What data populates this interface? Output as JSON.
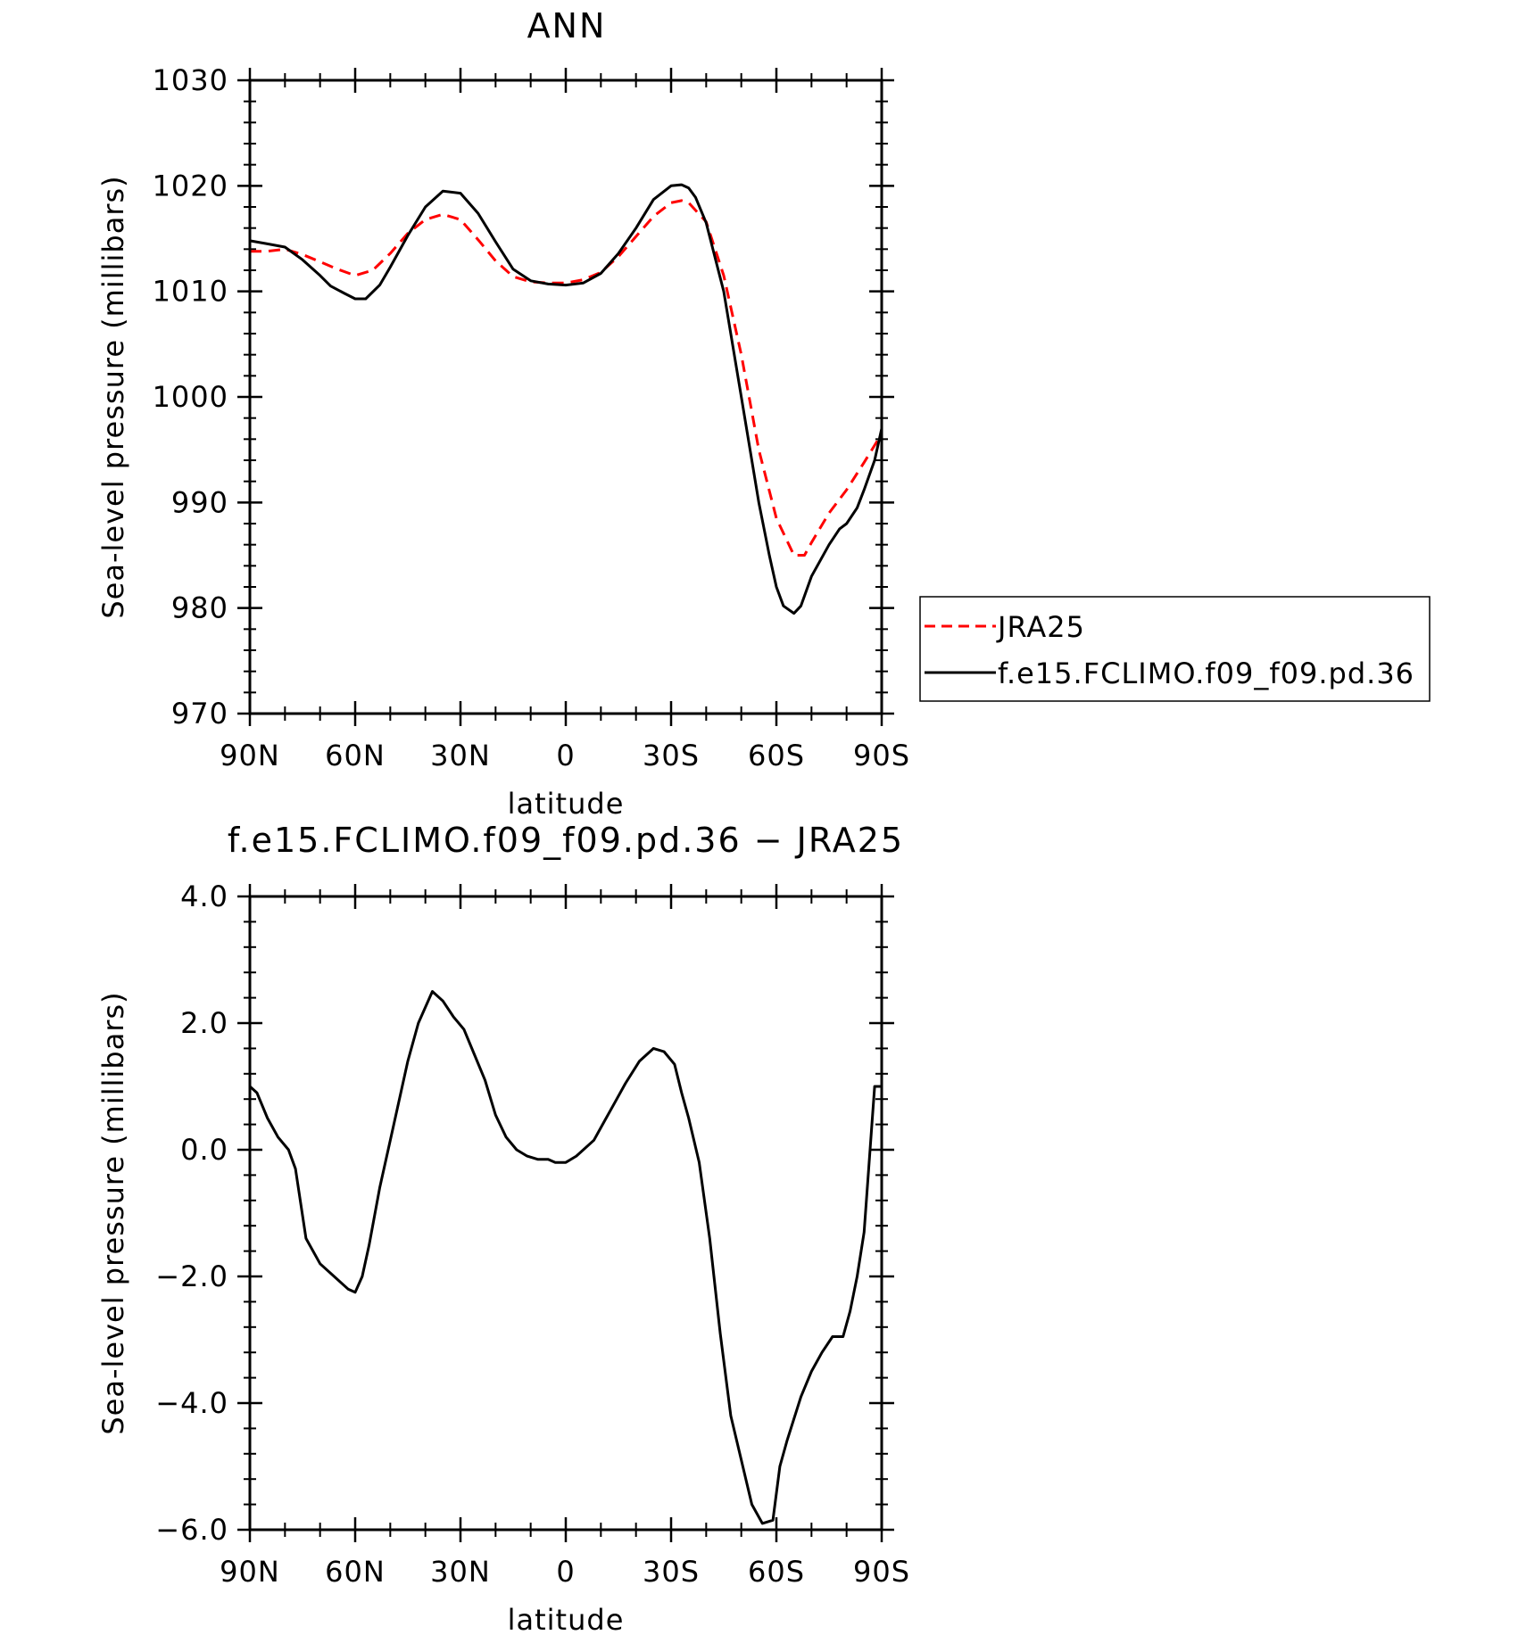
{
  "chart_data": [
    {
      "type": "line",
      "title": "ANN",
      "xlabel": "latitude",
      "ylabel": "Sea-level pressure (millibars)",
      "xlim": [
        90,
        -90
      ],
      "ylim": [
        970,
        1030
      ],
      "xtick_values": [
        90,
        60,
        30,
        0,
        -30,
        -60,
        -90
      ],
      "xtick_labels": [
        "90N",
        "60N",
        "30N",
        "0",
        "30S",
        "60S",
        "90S"
      ],
      "ytick_values": [
        970,
        980,
        990,
        1000,
        1010,
        1020,
        1030
      ],
      "ytick_labels": [
        "970",
        "980",
        "990",
        "1000",
        "1010",
        "1020",
        "1030"
      ],
      "grid": false,
      "legend_position": "right, outside plot",
      "series": [
        {
          "name": "JRA25",
          "color": "#ff0000",
          "style": "dashed",
          "x": [
            90,
            85,
            80,
            75,
            70,
            65,
            60,
            55,
            50,
            45,
            40,
            35,
            30,
            25,
            20,
            15,
            10,
            5,
            0,
            -5,
            -10,
            -15,
            -20,
            -25,
            -30,
            -33,
            -35,
            -40,
            -45,
            -50,
            -55,
            -60,
            -65,
            -68,
            -70,
            -75,
            -80,
            -85,
            -90
          ],
          "y": [
            1013.8,
            1013.8,
            1014.0,
            1013.5,
            1012.8,
            1012.1,
            1011.5,
            1012.0,
            1013.6,
            1015.5,
            1016.8,
            1017.3,
            1016.8,
            1014.9,
            1012.9,
            1011.4,
            1010.9,
            1010.8,
            1010.8,
            1011.1,
            1011.8,
            1013.3,
            1015.2,
            1017.1,
            1018.4,
            1018.6,
            1018.4,
            1016.6,
            1011.5,
            1004.0,
            995.0,
            988.5,
            985.0,
            985.0,
            986.2,
            989.0,
            991.2,
            993.8,
            996.5
          ]
        },
        {
          "name": "f.e15.FCLIMO.f09_f09.pd.36",
          "color": "#000000",
          "style": "solid",
          "x": [
            90,
            85,
            80,
            75,
            70,
            67,
            63,
            60,
            57,
            53,
            50,
            45,
            40,
            35,
            30,
            25,
            20,
            15,
            10,
            5,
            0,
            -5,
            -10,
            -15,
            -20,
            -25,
            -30,
            -33,
            -35,
            -37,
            -40,
            -45,
            -50,
            -55,
            -58,
            -60,
            -62,
            -65,
            -67,
            -70,
            -75,
            -78,
            -80,
            -83,
            -85,
            -88,
            -90
          ],
          "y": [
            1014.8,
            1014.5,
            1014.2,
            1013.0,
            1011.5,
            1010.5,
            1009.8,
            1009.3,
            1009.3,
            1010.6,
            1012.3,
            1015.3,
            1018.0,
            1019.5,
            1019.3,
            1017.4,
            1014.7,
            1012.1,
            1011.0,
            1010.7,
            1010.6,
            1010.8,
            1011.7,
            1013.6,
            1016.0,
            1018.7,
            1020.0,
            1020.1,
            1019.8,
            1018.9,
            1016.5,
            1010.0,
            1000.0,
            990.0,
            985.0,
            982.0,
            980.2,
            979.5,
            980.2,
            983.0,
            986.0,
            987.5,
            988.0,
            989.5,
            991.2,
            994.0,
            997.0
          ]
        }
      ]
    },
    {
      "type": "line",
      "title": "f.e15.FCLIMO.f09_f09.pd.36 − JRA25",
      "xlabel": "latitude",
      "ylabel": "Sea-level pressure (millibars)",
      "xlim": [
        90,
        -90
      ],
      "ylim": [
        -6.0,
        4.0
      ],
      "xtick_values": [
        90,
        60,
        30,
        0,
        -30,
        -60,
        -90
      ],
      "xtick_labels": [
        "90N",
        "60N",
        "30N",
        "0",
        "30S",
        "60S",
        "90S"
      ],
      "ytick_values": [
        -6,
        -4,
        -2,
        0,
        2,
        4
      ],
      "ytick_labels": [
        "−6.0",
        "−4.0",
        "−2.0",
        "0.0",
        "2.0",
        "4.0"
      ],
      "grid": false,
      "series": [
        {
          "color": "#000000",
          "style": "solid",
          "x": [
            90,
            88,
            85,
            82,
            79,
            77,
            74,
            70,
            66,
            62,
            60,
            58,
            56,
            53,
            49,
            45,
            42,
            38,
            35,
            32,
            29,
            26,
            23,
            20,
            17,
            14,
            11,
            8,
            5,
            3,
            0,
            -3,
            -5,
            -8,
            -11,
            -14,
            -17,
            -21,
            -25,
            -28,
            -31,
            -33,
            -35,
            -38,
            -41,
            -44,
            -47,
            -50,
            -53,
            -56,
            -59,
            -61,
            -63,
            -67,
            -70,
            -73,
            -76,
            -79,
            -81,
            -83,
            -85,
            -88,
            -90
          ],
          "y": [
            1.0,
            0.9,
            0.5,
            0.2,
            0.0,
            -0.3,
            -1.4,
            -1.8,
            -2.0,
            -2.2,
            -2.25,
            -2.0,
            -1.5,
            -0.6,
            0.4,
            1.4,
            2.0,
            2.5,
            2.35,
            2.1,
            1.9,
            1.5,
            1.1,
            0.55,
            0.2,
            0.0,
            -0.1,
            -0.15,
            -0.15,
            -0.2,
            -0.2,
            -0.1,
            0.0,
            0.15,
            0.45,
            0.75,
            1.05,
            1.4,
            1.6,
            1.55,
            1.35,
            0.9,
            0.5,
            -0.2,
            -1.4,
            -2.9,
            -4.2,
            -4.9,
            -5.6,
            -5.9,
            -5.85,
            -5.0,
            -4.6,
            -3.9,
            -3.5,
            -3.2,
            -2.95,
            -2.95,
            -2.55,
            -2.0,
            -1.3,
            1.0,
            1.0
          ]
        }
      ]
    }
  ]
}
